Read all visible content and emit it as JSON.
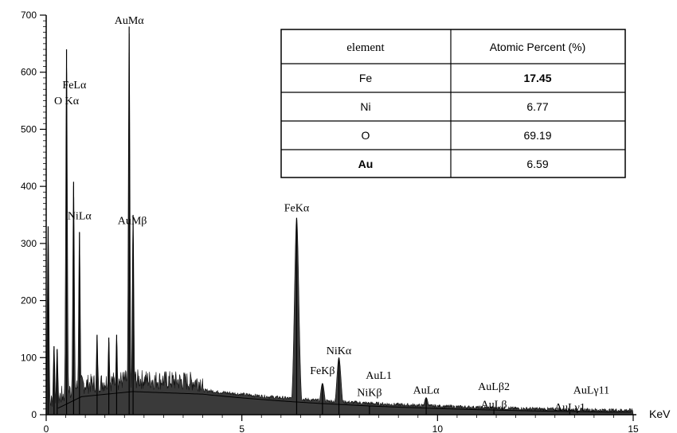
{
  "chart_data": {
    "type": "area",
    "title": "",
    "xlabel": "",
    "ylabel": "",
    "x_unit": "KeV",
    "xlim": [
      0,
      15
    ],
    "ylim": [
      0,
      700
    ],
    "x_ticks": [
      "0",
      "5",
      "10",
      "15"
    ],
    "y_ticks": [
      "0",
      "100",
      "200",
      "300",
      "400",
      "500",
      "600",
      "700"
    ],
    "grid": false,
    "legend": "none",
    "peak_x": [
      0.05,
      0.2,
      0.28,
      0.52,
      0.7,
      0.85,
      1.3,
      1.6,
      1.8,
      2.12,
      2.22,
      6.4,
      7.06,
      7.48,
      8.26,
      9.71,
      11.44,
      13.38
    ],
    "peak_y": [
      330,
      120,
      115,
      640,
      408,
      320,
      140,
      135,
      140,
      680,
      350,
      345,
      55,
      100,
      15,
      30,
      10,
      5
    ],
    "peak_labels": [
      {
        "text": "AuMα",
        "x": 2.12,
        "y": 685
      },
      {
        "text": "FeLα",
        "x": 0.72,
        "y": 572
      },
      {
        "text": "O Kα",
        "x": 0.52,
        "y": 544
      },
      {
        "text": "NiLα",
        "x": 0.85,
        "y": 342
      },
      {
        "text": "AuMβ",
        "x": 2.2,
        "y": 334
      },
      {
        "text": "FeKα",
        "x": 6.4,
        "y": 356
      },
      {
        "text": "NiKα",
        "x": 7.48,
        "y": 106
      },
      {
        "text": "FeKβ",
        "x": 7.06,
        "y": 71
      },
      {
        "text": "AuL1",
        "x": 8.5,
        "y": 63
      },
      {
        "text": "NiKβ",
        "x": 8.26,
        "y": 33
      },
      {
        "text": "AuLα",
        "x": 9.71,
        "y": 37
      },
      {
        "text": "AuLβ2",
        "x": 11.44,
        "y": 43
      },
      {
        "text": "AuLβ",
        "x": 11.44,
        "y": 12
      },
      {
        "text": "AuLγ11",
        "x": 13.93,
        "y": 37
      },
      {
        "text": "AuLγ1",
        "x": 13.38,
        "y": 7
      }
    ]
  },
  "table": {
    "header": [
      "element",
      "Atomic Percent (%)"
    ],
    "rows": [
      {
        "element": "Fe",
        "value": "17.45"
      },
      {
        "element": "Ni",
        "value": "6.77"
      },
      {
        "element": "O",
        "value": "69.19"
      },
      {
        "element": "Au",
        "value": "6.59"
      }
    ]
  },
  "colors": {
    "spectrum_fill": "#3a3a3a",
    "axis": "#000000",
    "background_curve": "#000000"
  }
}
